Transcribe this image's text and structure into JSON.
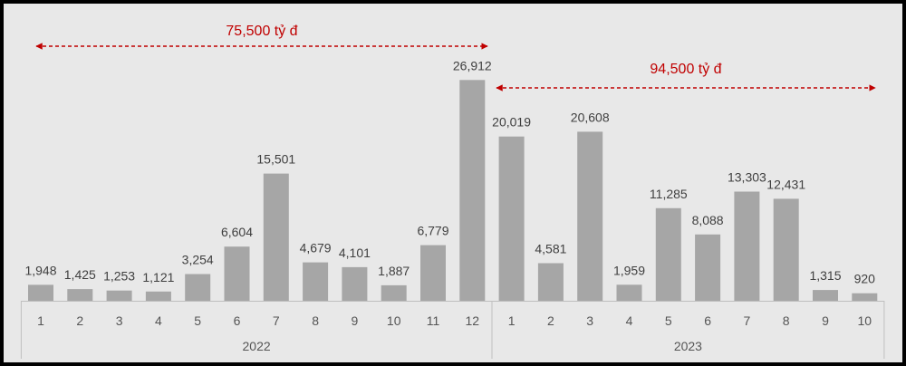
{
  "chart_data": {
    "type": "bar",
    "groups": [
      {
        "label": "2022",
        "categories": [
          "1",
          "2",
          "3",
          "4",
          "5",
          "6",
          "7",
          "8",
          "9",
          "10",
          "11",
          "12"
        ],
        "values": [
          1948,
          1425,
          1253,
          1121,
          3254,
          6604,
          15501,
          4679,
          4101,
          1887,
          6779,
          26912
        ],
        "value_labels": [
          "1,948",
          "1,425",
          "1,253",
          "1,121",
          "3,254",
          "6,604",
          "15,501",
          "4,679",
          "4,101",
          "1,887",
          "6,779",
          "26,912"
        ]
      },
      {
        "label": "2023",
        "categories": [
          "1",
          "2",
          "3",
          "4",
          "5",
          "6",
          "7",
          "8",
          "9",
          "10"
        ],
        "values": [
          20019,
          4581,
          20608,
          1959,
          11285,
          8088,
          13303,
          12431,
          1315,
          920
        ],
        "value_labels": [
          "20,019",
          "4,581",
          "20,608",
          "1,959",
          "11,285",
          "8,088",
          "13,303",
          "12,431",
          "1,315",
          "920"
        ]
      }
    ],
    "annotations": [
      {
        "text": "75,500 tỷ đ",
        "from_group": 0,
        "from_index": 0,
        "to_group": 0,
        "to_index": 11
      },
      {
        "text": "94,500 tỷ đ",
        "from_group": 1,
        "from_index": 0,
        "to_group": 1,
        "to_index": 9
      }
    ],
    "ylim": [
      0,
      27500
    ],
    "grid": false,
    "legend": "none"
  },
  "colors": {
    "background": "#e8e8e8",
    "bar": "#a6a6a6",
    "annotation": "#c00000",
    "axis": "#bfbfbf"
  }
}
